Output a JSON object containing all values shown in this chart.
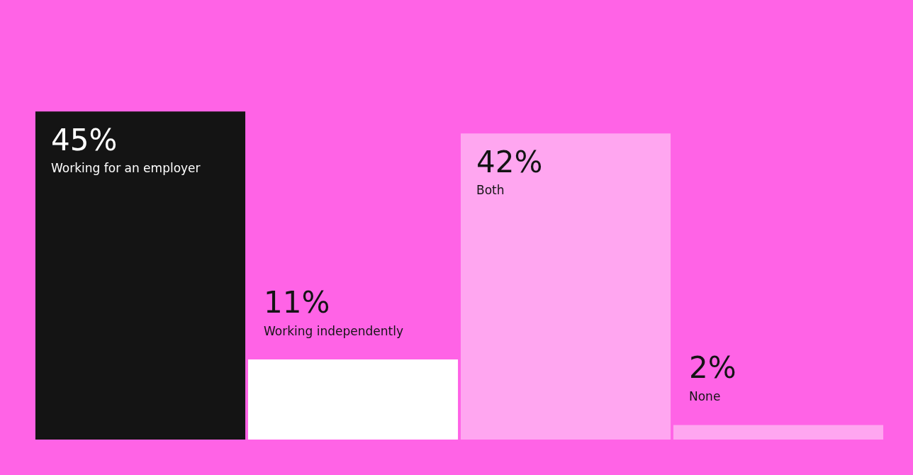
{
  "chart_data": {
    "type": "bar",
    "categories": [
      "Working for an employer",
      "Working independently",
      "Both",
      "None"
    ],
    "values": [
      45,
      11,
      42,
      2
    ],
    "value_labels": [
      "45%",
      "11%",
      "42%",
      "2%"
    ],
    "colors": [
      "#141414",
      "#ffffff",
      "#ffa6f0",
      "#ffa6f0"
    ]
  }
}
